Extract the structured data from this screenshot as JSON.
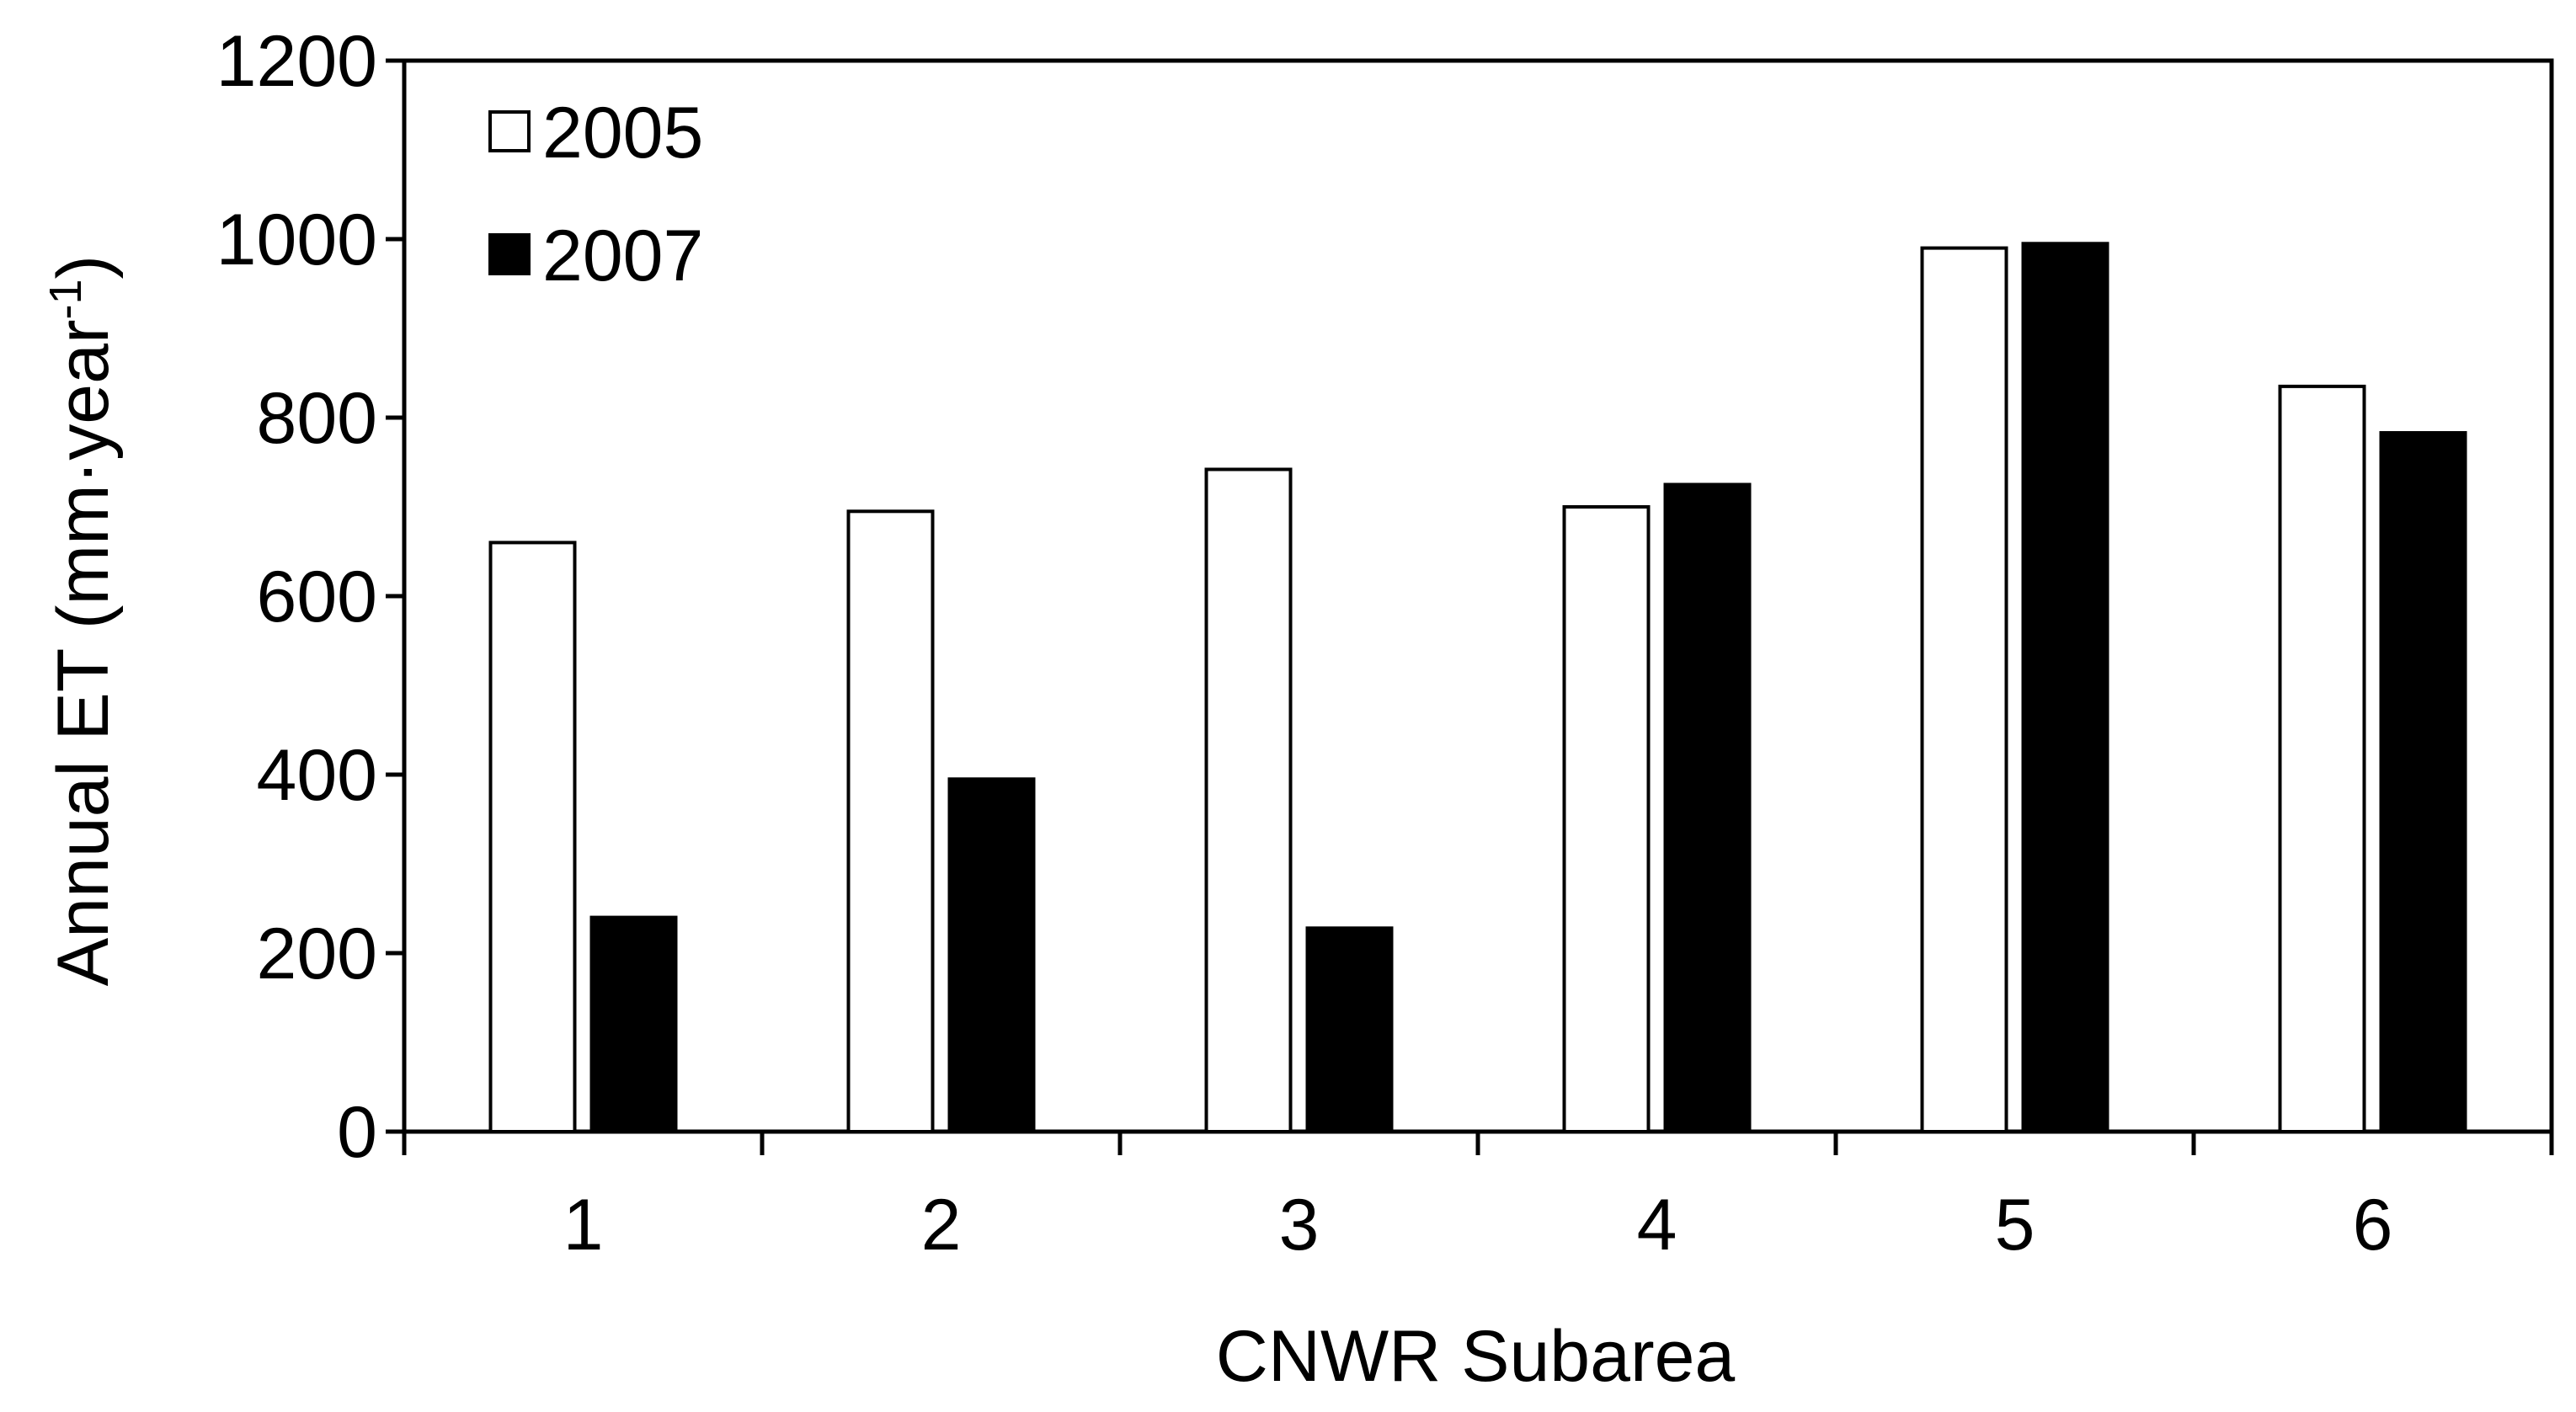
{
  "chart_data": {
    "type": "bar",
    "title": "",
    "xlabel": "CNWR Subarea",
    "ylabel": "Annual ET (mm·year",
    "ylabel_superscript": "-1",
    "ylabel_suffix": ")",
    "categories": [
      "1",
      "2",
      "3",
      "4",
      "5",
      "6"
    ],
    "ylim": [
      0,
      1200
    ],
    "yticks": [
      0,
      200,
      400,
      600,
      800,
      1000,
      1200
    ],
    "ytick_labels": [
      "0",
      "200",
      "400",
      "600",
      "800",
      "1000",
      "1200"
    ],
    "grid": false,
    "legend_position": "top-left",
    "series": [
      {
        "name": "2005",
        "values": [
          660,
          695,
          742,
          700,
          990,
          835
        ],
        "fill": "#ffffff",
        "stroke": "#000000"
      },
      {
        "name": "2007",
        "values": [
          240,
          395,
          228,
          725,
          995,
          783
        ],
        "fill": "#000000",
        "stroke": "#000000"
      }
    ]
  }
}
